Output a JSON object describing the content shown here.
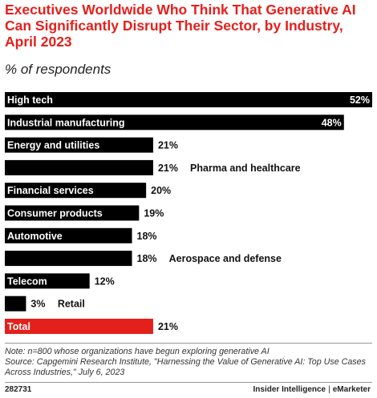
{
  "header": {
    "title": "Executives Worldwide Who Think That Generative AI Can Significantly Disrupt Their Sector, by Industry, April 2023",
    "subtitle": "% of respondents"
  },
  "chart_data": {
    "type": "bar",
    "orientation": "horizontal",
    "categories": [
      "High tech",
      "Industrial manufacturing",
      "Energy and utilities",
      "Pharma and healthcare",
      "Financial services",
      "Consumer products",
      "Automotive",
      "Aerospace and defense",
      "Telecom",
      "Retail",
      "Total"
    ],
    "values": [
      52,
      48,
      21,
      21,
      20,
      19,
      18,
      18,
      12,
      3,
      21
    ],
    "value_labels": [
      "52%",
      "48%",
      "21%",
      "21%",
      "20%",
      "19%",
      "18%",
      "18%",
      "12%",
      "3%",
      "21%"
    ],
    "highlight": "Total",
    "colors": {
      "bar": "#000000",
      "highlight": "#e4201c",
      "label_inside": "#ffffff",
      "label_outside": "#111111"
    },
    "xlim": [
      0,
      52
    ]
  },
  "footer": {
    "note": "Note: n=800 whose organizations have begun exploring generative AI",
    "source": "Source: Capgemini Research Institute, \"Harnessing the Value of Generative AI: Top Use Cases Across Industries,\" July 6, 2023",
    "chart_id": "282731",
    "brand_left": "Insider Intelligence",
    "brand_sep": "|",
    "brand_right": "eMarketer"
  }
}
